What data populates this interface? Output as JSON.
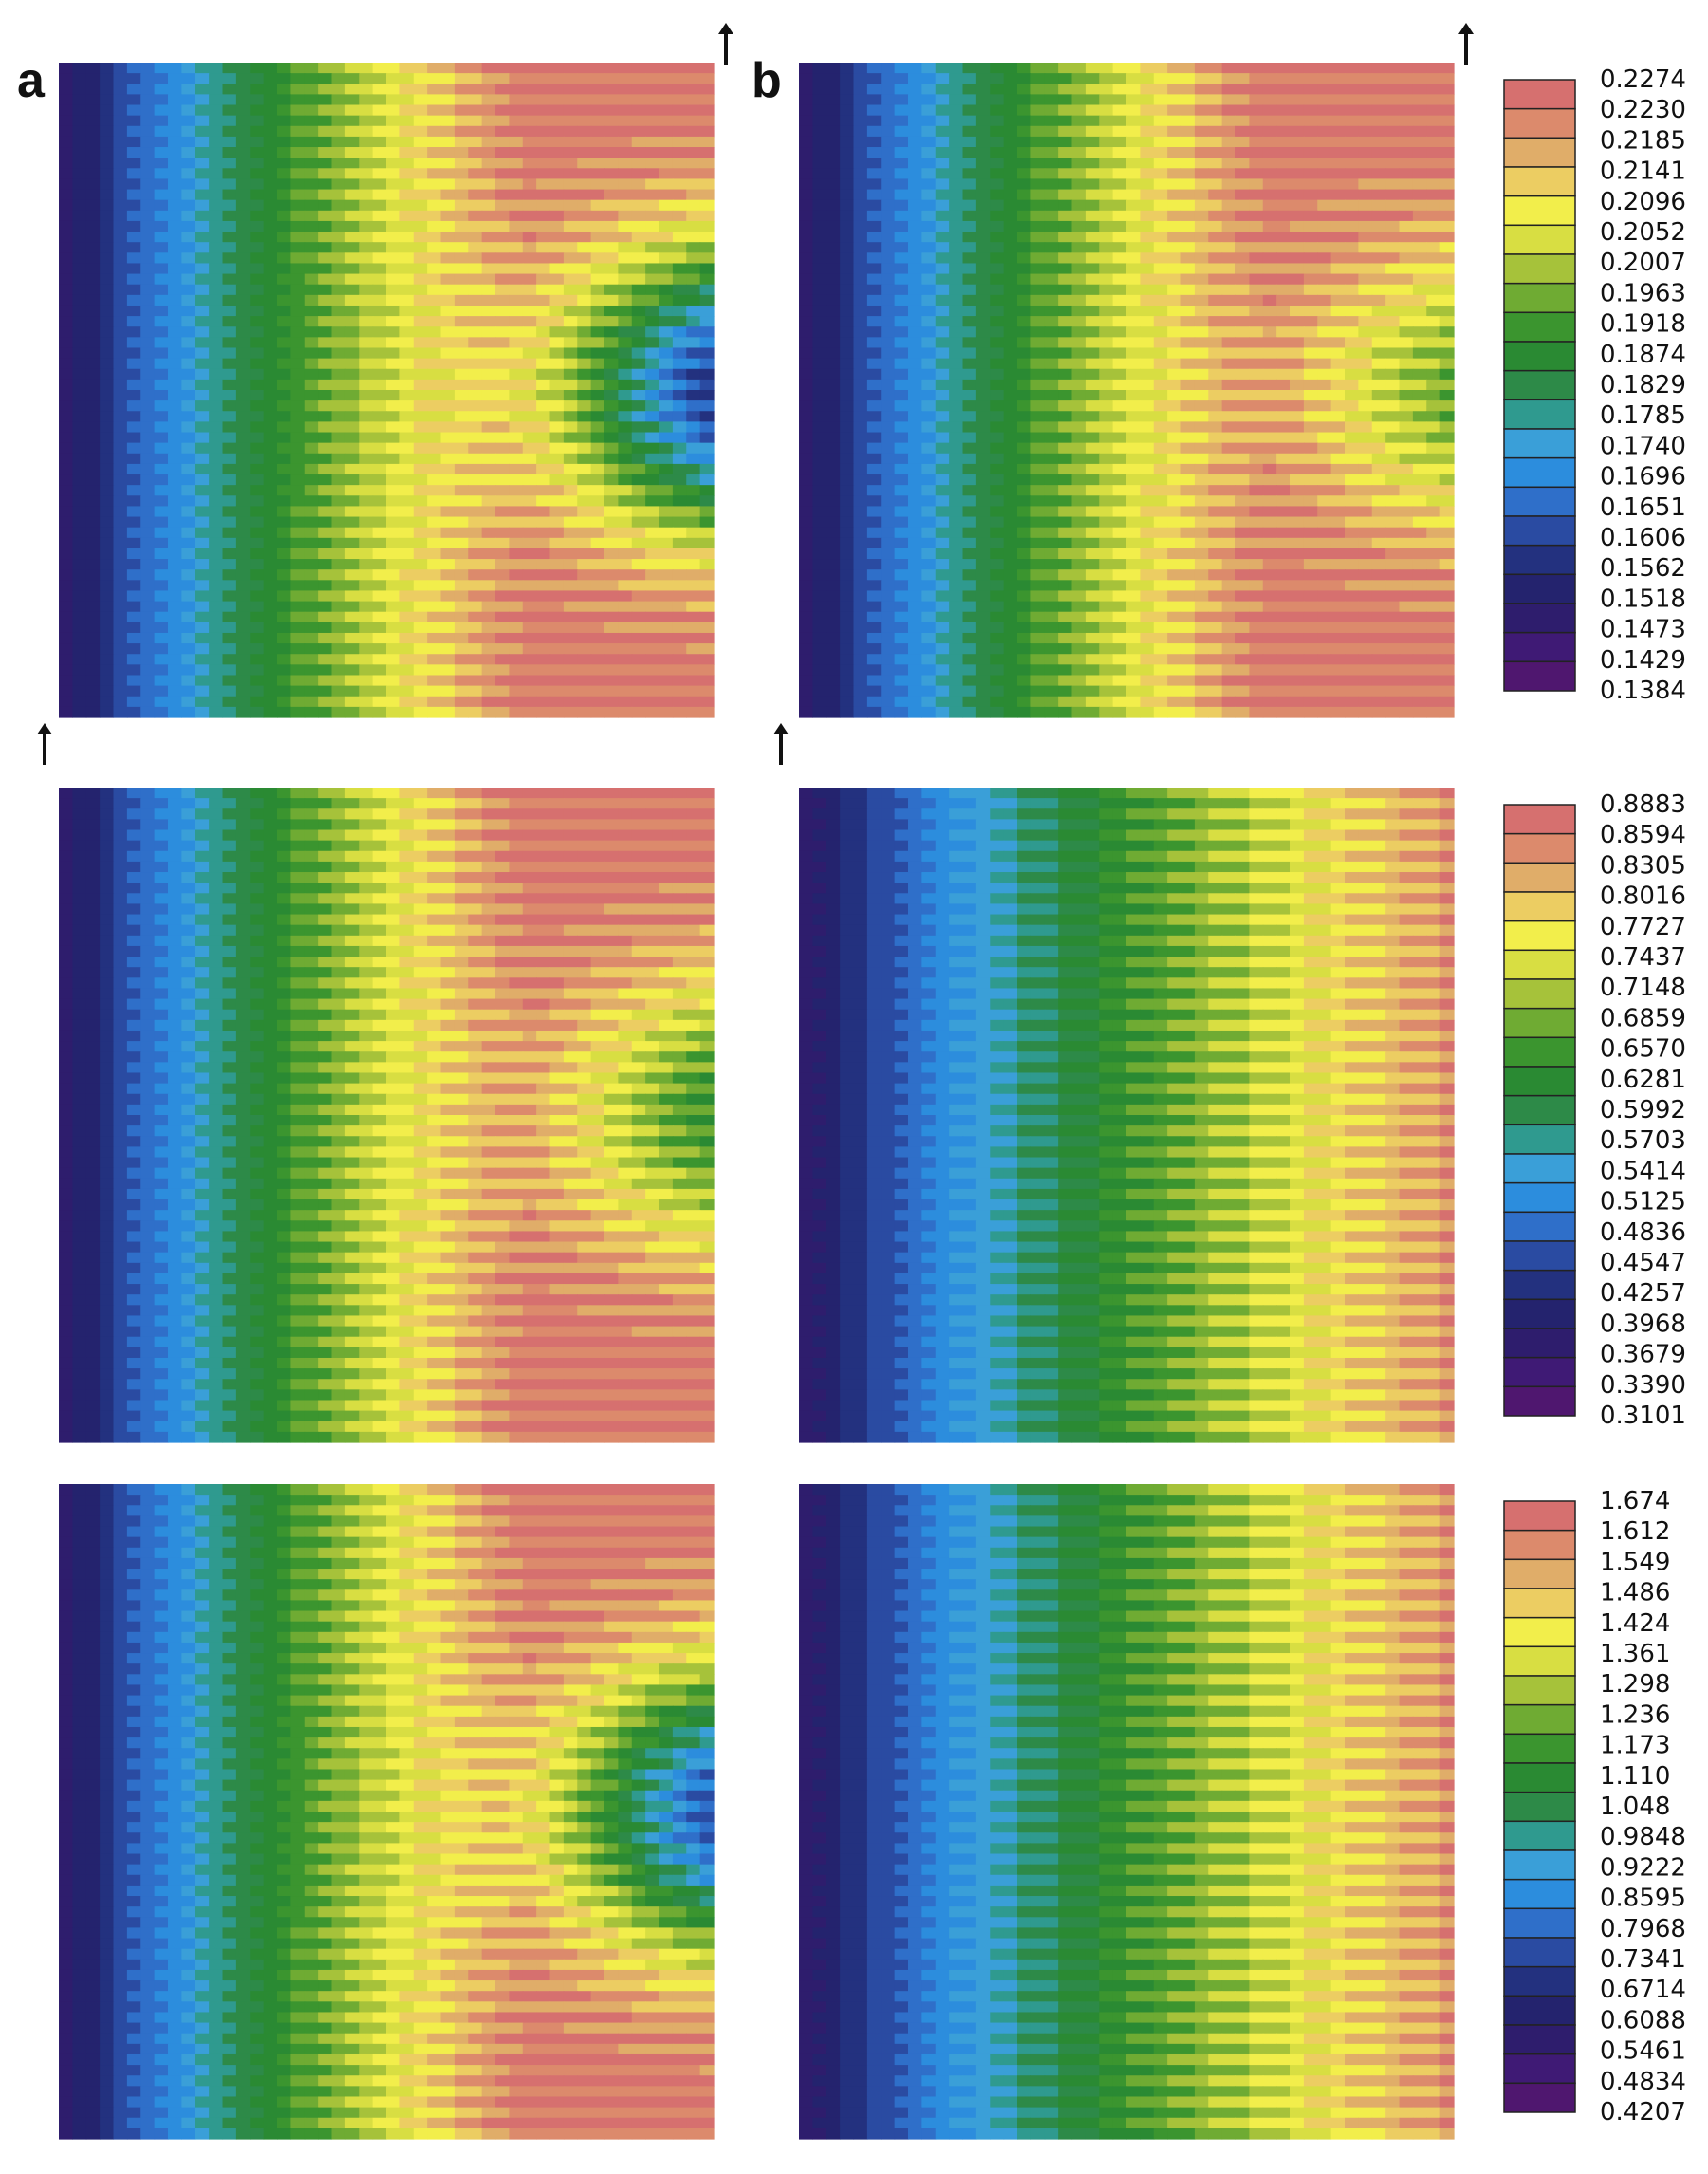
{
  "figure": {
    "panel_labels": [
      "a",
      "b"
    ],
    "arrow_symbol": "arrow-up-icon"
  },
  "chart_data": [
    {
      "type": "heatmap",
      "row": 1,
      "levels": [
        "0.2274",
        "0.2230",
        "0.2185",
        "0.2141",
        "0.2096",
        "0.2052",
        "0.2007",
        "0.1963",
        "0.1918",
        "0.1874",
        "0.1829",
        "0.1785",
        "0.1740",
        "0.1696",
        "0.1651",
        "0.1606",
        "0.1562",
        "0.1518",
        "0.1473",
        "0.1429",
        "0.1384"
      ],
      "range": [
        0.1384,
        0.2274
      ],
      "panels": [
        {
          "label": "a",
          "pattern": "arc-with-trough",
          "trough_value": 0.1518
        },
        {
          "label": "b",
          "pattern": "arc",
          "trough_value": 0.1829
        }
      ]
    },
    {
      "type": "heatmap",
      "row": 2,
      "levels": [
        "0.8883",
        "0.8594",
        "0.8305",
        "0.8016",
        "0.7727",
        "0.7437",
        "0.7148",
        "0.6859",
        "0.6570",
        "0.6281",
        "0.5992",
        "0.5703",
        "0.5414",
        "0.5125",
        "0.4836",
        "0.4547",
        "0.4257",
        "0.3968",
        "0.3679",
        "0.3390",
        "0.3101"
      ],
      "range": [
        0.3101,
        0.8883
      ],
      "panels": [
        {
          "label": "",
          "pattern": "arc-with-trough",
          "trough_value": 0.6281
        },
        {
          "label": "",
          "pattern": "increasing",
          "trough_value": null
        }
      ]
    },
    {
      "type": "heatmap",
      "row": 3,
      "levels": [
        "1.674",
        "1.612",
        "1.549",
        "1.486",
        "1.424",
        "1.361",
        "1.298",
        "1.236",
        "1.173",
        "1.110",
        "1.048",
        "0.9848",
        "0.9222",
        "0.8595",
        "0.7968",
        "0.7341",
        "0.6714",
        "0.6088",
        "0.5461",
        "0.4834",
        "0.4207"
      ],
      "range": [
        0.4207,
        1.674
      ],
      "panels": [
        {
          "label": "",
          "pattern": "arc-with-trough",
          "trough_value": 0.6714
        },
        {
          "label": "",
          "pattern": "increasing",
          "trough_value": null
        }
      ]
    }
  ],
  "palette": [
    "#d6706f",
    "#dc8a6c",
    "#e0ad69",
    "#eccd62",
    "#f2ee4b",
    "#d8de42",
    "#a6c23a",
    "#6fab33",
    "#3b952f",
    "#2a8a33",
    "#2d8a48",
    "#2f9a8f",
    "#3a9fd8",
    "#2c8ddd",
    "#2f6fc9",
    "#2a4ba2",
    "#23317f",
    "#24236e",
    "#2e1d6d",
    "#3f1a75",
    "#4f176f"
  ]
}
